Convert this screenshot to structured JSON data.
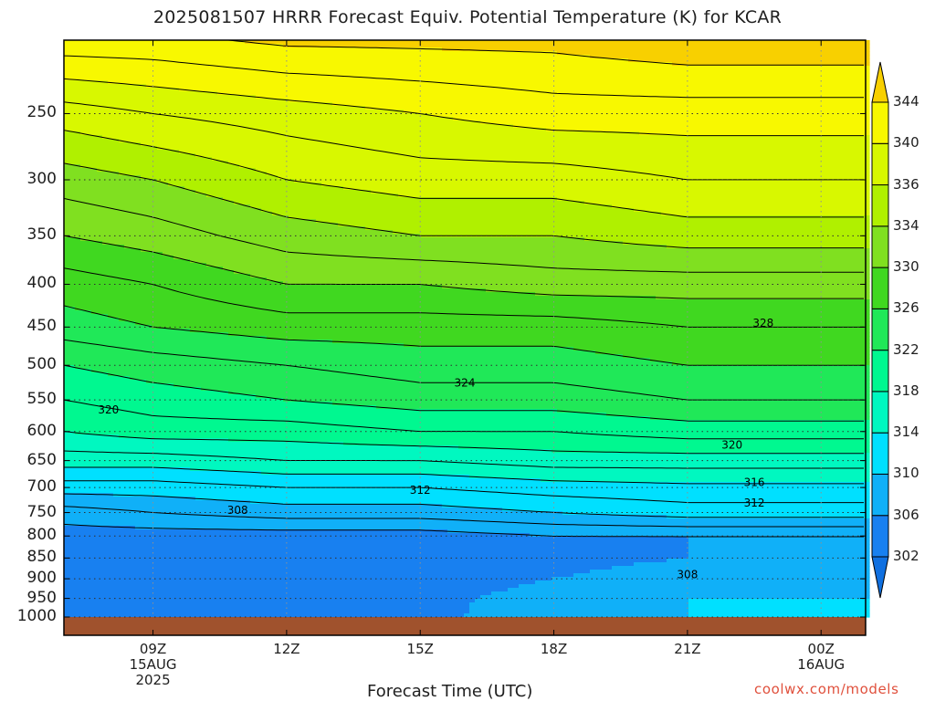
{
  "chart_data": {
    "type": "heatmap",
    "title": "2025081507 HRRR Forecast Equiv. Potential Temperature (K) for KCAR",
    "xlabel": "Forecast Time (UTC)",
    "ylabel": "",
    "credit": "coolwx.com/models",
    "x_ticks": [
      {
        "label": "09Z",
        "sub1": "15AUG",
        "sub2": "2025"
      },
      {
        "label": "12Z",
        "sub1": "",
        "sub2": ""
      },
      {
        "label": "15Z",
        "sub1": "",
        "sub2": ""
      },
      {
        "label": "18Z",
        "sub1": "",
        "sub2": ""
      },
      {
        "label": "21Z",
        "sub1": "",
        "sub2": ""
      },
      {
        "label": "00Z",
        "sub1": "16AUG",
        "sub2": ""
      }
    ],
    "x_tick_hours": [
      9,
      12,
      15,
      18,
      21,
      24
    ],
    "x_range_hours": [
      7.0,
      25.0
    ],
    "y_ticks": [
      250,
      300,
      350,
      400,
      450,
      500,
      550,
      600,
      650,
      700,
      750,
      800,
      850,
      900,
      950,
      1000
    ],
    "y_axis": "pressure (hPa), log scale, decreasing upward",
    "y_range": [
      1030,
      200
    ],
    "colorbar": {
      "levels": [
        302,
        306,
        310,
        314,
        318,
        322,
        326,
        330,
        334,
        336,
        340,
        344
      ],
      "colors": [
        "#1880f0",
        "#10b0f8",
        "#00e0ff",
        "#00f8c0",
        "#00f890",
        "#20e858",
        "#40d820",
        "#80e020",
        "#b0f000",
        "#d8f800",
        "#f8f800",
        "#f8d000"
      ],
      "extend_low_color": "#1070e0"
    },
    "contour_labels": [
      {
        "text": "328",
        "hour": 22.7,
        "p": 445
      },
      {
        "text": "324",
        "hour": 16.0,
        "p": 525
      },
      {
        "text": "320",
        "hour": 8.0,
        "p": 565
      },
      {
        "text": "320",
        "hour": 22.0,
        "p": 623
      },
      {
        "text": "316",
        "hour": 22.5,
        "p": 690
      },
      {
        "text": "312",
        "hour": 15.0,
        "p": 705
      },
      {
        "text": "312",
        "hour": 22.5,
        "p": 730
      },
      {
        "text": "308",
        "hour": 10.9,
        "p": 745
      },
      {
        "text": "308",
        "hour": 21.0,
        "p": 890
      }
    ],
    "profile_hours": [
      7,
      9,
      12,
      15,
      18,
      21,
      24,
      25
    ],
    "profiles": [
      {
        "p": 1000,
        "v": [
          305,
          304,
          303,
          305,
          308,
          310,
          310,
          310
        ]
      },
      {
        "p": 950,
        "v": [
          305,
          304,
          303,
          305,
          307.5,
          310,
          310,
          310
        ]
      },
      {
        "p": 900,
        "v": [
          304,
          304,
          303.5,
          304,
          306,
          309,
          309,
          309
        ]
      },
      {
        "p": 850,
        "v": [
          304,
          303,
          303,
          303,
          304,
          306,
          306,
          306
        ]
      },
      {
        "p": 800,
        "v": [
          305,
          305,
          305,
          305,
          306,
          306,
          306,
          306
        ]
      },
      {
        "p": 750,
        "v": [
          307,
          308,
          309,
          309,
          310,
          311,
          311,
          311
        ]
      },
      {
        "p": 700,
        "v": [
          311,
          311,
          312,
          312,
          313,
          313.5,
          313.5,
          313.5
        ]
      },
      {
        "p": 650,
        "v": [
          315,
          315,
          316,
          316,
          317,
          317,
          317,
          317
        ]
      },
      {
        "p": 600,
        "v": [
          318,
          319,
          319,
          320,
          320,
          321,
          321,
          321
        ]
      },
      {
        "p": 550,
        "v": [
          320,
          321,
          322,
          323,
          323,
          324,
          324,
          324
        ]
      },
      {
        "p": 500,
        "v": [
          322,
          323,
          324,
          325,
          325,
          326,
          326,
          326
        ]
      },
      {
        "p": 450,
        "v": [
          325,
          326,
          327,
          327,
          327,
          328,
          328,
          328
        ]
      },
      {
        "p": 400,
        "v": [
          327,
          328,
          330,
          330,
          331,
          331,
          331,
          331
        ]
      },
      {
        "p": 350,
        "v": [
          330,
          331,
          333,
          334,
          334,
          335,
          335,
          335
        ]
      },
      {
        "p": 300,
        "v": [
          333,
          334,
          336,
          337,
          337,
          338,
          338,
          338
        ]
      },
      {
        "p": 250,
        "v": [
          337,
          338,
          339,
          340,
          341,
          341,
          341,
          341
        ]
      },
      {
        "p": 200,
        "v": [
          344,
          344,
          345,
          345,
          345,
          346,
          346,
          346
        ]
      }
    ],
    "contour_levels": [
      306,
      308,
      310,
      312,
      314,
      316,
      318,
      320,
      322,
      324,
      326,
      328,
      330,
      332,
      334,
      336,
      338,
      340,
      342,
      344
    ],
    "ground_color": "#a0522d",
    "grid": true
  }
}
